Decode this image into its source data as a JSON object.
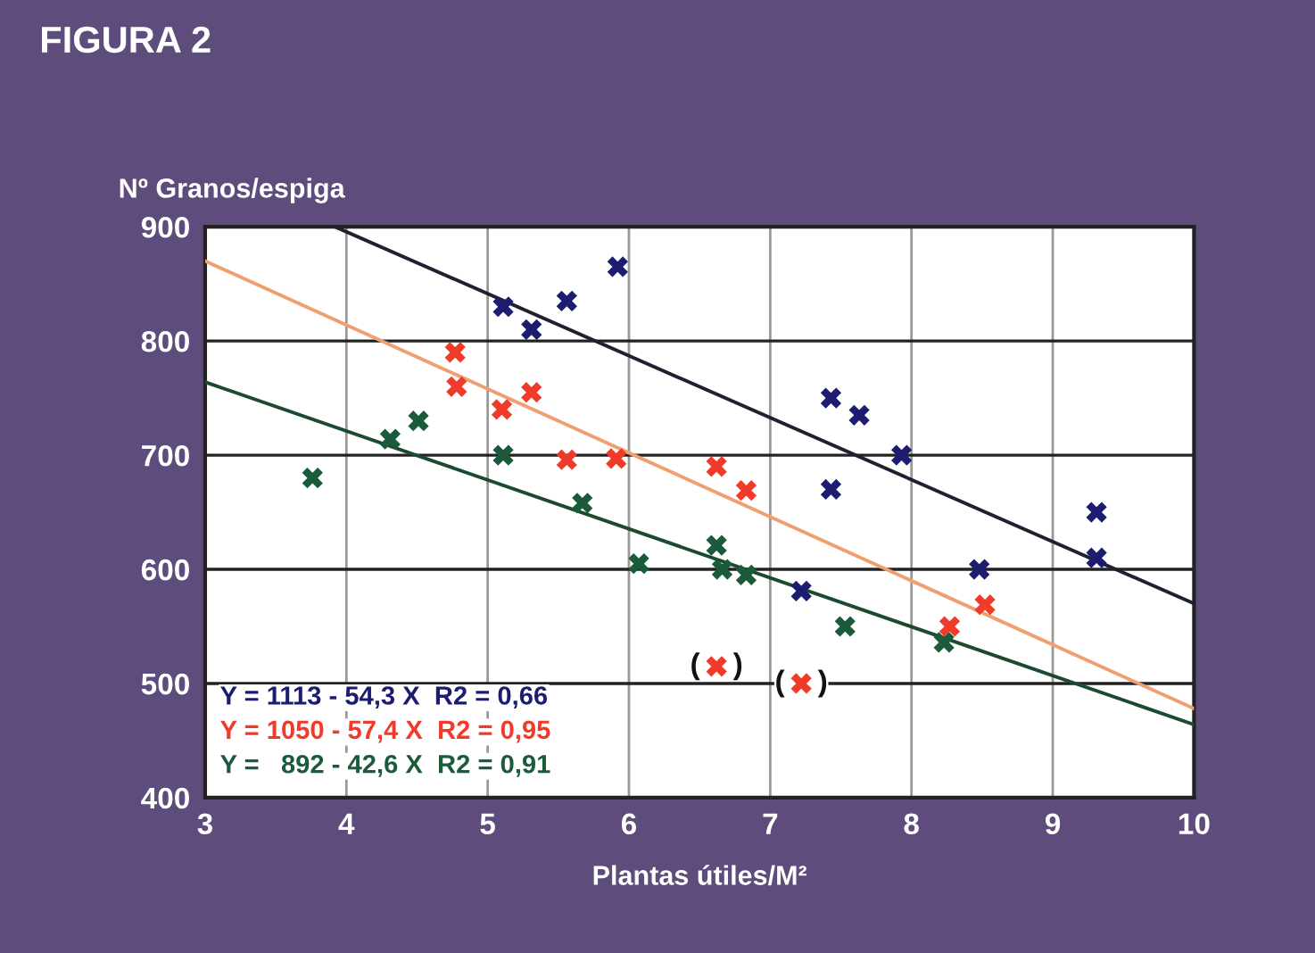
{
  "chart_data": {
    "type": "scatter",
    "title": "FIGURA 2",
    "ylabel": "Nº Granos/espiga",
    "xlabel": "Plantas útiles/M²",
    "xlim": [
      3,
      10
    ],
    "xticks": [
      3,
      4,
      5,
      6,
      7,
      8,
      9,
      10
    ],
    "ylim": [
      400,
      900
    ],
    "yticks": [
      400,
      500,
      600,
      700,
      800,
      900
    ],
    "grid": true,
    "series": [
      {
        "marker": "cross",
        "color": "#1c1c70",
        "x": [
          5.11,
          5.31,
          5.56,
          5.92,
          7.43,
          7.63,
          7.93,
          7.43,
          9.31,
          9.31,
          8.48,
          7.22
        ],
        "values": [
          830,
          810,
          835,
          865,
          750,
          735,
          700,
          670,
          650,
          610,
          600,
          581
        ]
      },
      {
        "marker": "cross",
        "color": "#f03a2a",
        "x": [
          4.77,
          4.78,
          5.1,
          5.31,
          5.56,
          5.91,
          6.62,
          6.83,
          8.52,
          8.27,
          6.62,
          7.22
        ],
        "values": [
          790,
          760,
          740,
          755,
          696,
          697,
          690,
          669,
          569,
          550,
          515,
          500
        ]
      },
      {
        "marker": "cross",
        "color": "#1c5a3c",
        "x": [
          3.76,
          4.31,
          4.51,
          5.11,
          5.67,
          6.07,
          6.62,
          6.66,
          6.83,
          7.53,
          8.23
        ],
        "values": [
          680,
          714,
          730,
          700,
          658,
          605,
          621,
          600,
          595,
          550,
          536
        ]
      },
      {
        "type": "line",
        "color": "#202030",
        "x": [
          3.92,
          10
        ],
        "values": [
          900,
          570
        ]
      },
      {
        "type": "line",
        "color": "#f0a070",
        "x": [
          3,
          10
        ],
        "values": [
          870,
          478
        ]
      },
      {
        "type": "line",
        "color": "#1c4a30",
        "x": [
          3,
          10
        ],
        "values": [
          764,
          464
        ]
      }
    ],
    "annotations": [
      "Y = 1113 - 54,3 X  R2 = 0,66",
      "Y = 1050 - 57,4 X  R2 = 0,95",
      "Y =   892 - 42,6 X  R2 = 0,91",
      {
        "text": "(    )",
        "x": 6.62,
        "y": 515
      },
      {
        "text": "(    )",
        "x": 7.22,
        "y": 500
      }
    ]
  }
}
